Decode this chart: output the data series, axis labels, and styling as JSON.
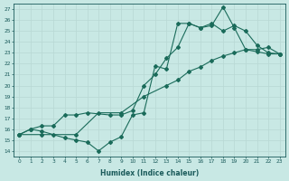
{
  "xlabel": "Humidex (Indice chaleur)",
  "xlim": [
    -0.5,
    23.5
  ],
  "ylim": [
    13.5,
    27.5
  ],
  "yticks": [
    14,
    15,
    16,
    17,
    18,
    19,
    20,
    21,
    22,
    23,
    24,
    25,
    26,
    27
  ],
  "xticks": [
    0,
    1,
    2,
    3,
    4,
    5,
    6,
    7,
    8,
    9,
    10,
    11,
    12,
    13,
    14,
    15,
    16,
    17,
    18,
    19,
    20,
    21,
    22,
    23
  ],
  "bg_color": "#c8e8e4",
  "line_color": "#1a6b5a",
  "line1_x": [
    0,
    1,
    2,
    3,
    4,
    5,
    6,
    7,
    8,
    9,
    10,
    11,
    12,
    13,
    14,
    15,
    16,
    17,
    18,
    19,
    20,
    21,
    22,
    23
  ],
  "line1_y": [
    15.5,
    16.0,
    15.8,
    15.5,
    15.2,
    15.0,
    14.8,
    14.0,
    14.8,
    15.3,
    17.3,
    17.5,
    21.8,
    21.5,
    25.7,
    25.7,
    25.3,
    25.5,
    27.2,
    25.3,
    23.3,
    23.1,
    22.9,
    22.9
  ],
  "line2_x": [
    0,
    1,
    2,
    3,
    4,
    5,
    6,
    8,
    9,
    10,
    11,
    12,
    13,
    14,
    15,
    16,
    17,
    18,
    19,
    20,
    21,
    22,
    23
  ],
  "line2_y": [
    15.5,
    16.0,
    16.3,
    16.3,
    17.3,
    17.3,
    17.5,
    17.3,
    17.3,
    17.7,
    20.0,
    21.0,
    22.5,
    23.5,
    25.7,
    25.3,
    25.7,
    25.0,
    25.5,
    25.0,
    23.7,
    23.0,
    22.9
  ],
  "line3_x": [
    0,
    2,
    5,
    7,
    9,
    11,
    13,
    14,
    15,
    16,
    17,
    18,
    19,
    20,
    21,
    22,
    23
  ],
  "line3_y": [
    15.5,
    15.5,
    15.5,
    17.5,
    17.5,
    19.0,
    20.0,
    20.5,
    21.3,
    21.7,
    22.3,
    22.7,
    23.0,
    23.3,
    23.3,
    23.5,
    22.9
  ]
}
